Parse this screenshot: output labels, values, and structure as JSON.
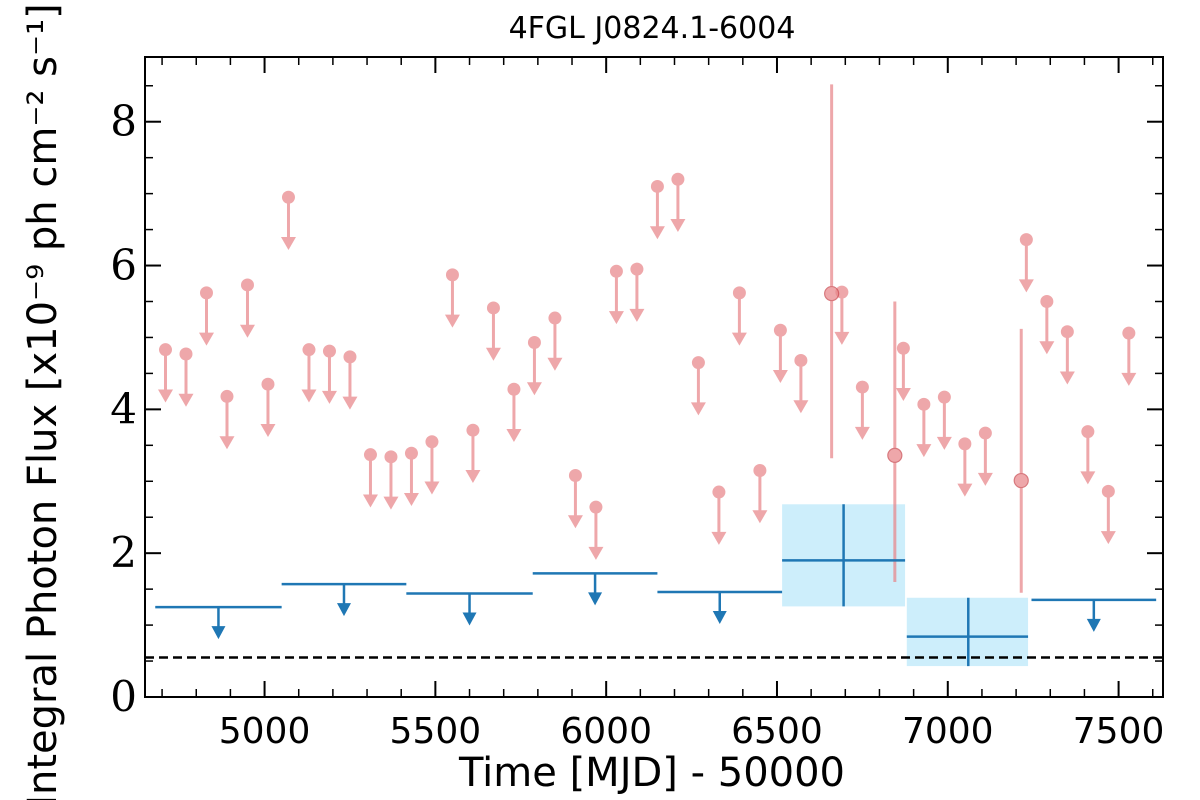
{
  "chart_data": {
    "type": "scatter",
    "title": "4FGL J0824.1-6004",
    "xlabel": "Time [MJD] - 50000",
    "ylabel": "Integral Photon Flux [x10⁻⁹ ph cm⁻² s⁻¹]",
    "xlim": [
      4650,
      7630
    ],
    "ylim": [
      0,
      8.9
    ],
    "xticks": [
      5000,
      5500,
      6000,
      6500,
      7000,
      7500
    ],
    "yticks": [
      0,
      2,
      4,
      6,
      8
    ],
    "xtick_labels": [
      "5000",
      "5500",
      "6000",
      "6500",
      "7000",
      "7500"
    ],
    "ytick_labels": [
      "0",
      "2",
      "4",
      "6",
      "8"
    ],
    "grid": false,
    "reference_line": {
      "y": 0.55,
      "style": "dashed",
      "color": "#000000"
    },
    "colors": {
      "short_bins": "#e8868a",
      "long_bins": "#1f77b4",
      "long_band": "#cdeefb"
    },
    "series": [
      {
        "kind": "short-bin upper limits",
        "x": [
          4710,
          4770,
          4830,
          4890,
          4950,
          5010,
          5070,
          5130,
          5190,
          5250,
          5310,
          5370,
          5430,
          5490,
          5550,
          5610,
          5670,
          5730,
          5790,
          5850,
          5910,
          5970,
          6030,
          6090,
          6150,
          6210,
          6270,
          6330,
          6390,
          6450,
          6510,
          6570,
          6630,
          6690,
          6750,
          6810,
          6870,
          6930,
          6990,
          7050,
          7110,
          7170,
          7230,
          7290,
          7350,
          7410,
          7470,
          7530,
          7590
        ],
        "y": [
          4.83,
          4.77,
          5.62,
          4.18,
          5.73,
          4.35,
          6.95,
          4.83,
          4.81,
          4.73,
          3.37,
          3.34,
          3.39,
          3.55,
          5.87,
          3.71,
          5.41,
          4.28,
          4.93,
          5.27,
          3.08,
          2.64,
          5.92,
          5.95,
          7.1,
          7.2,
          4.65,
          2.85,
          5.62,
          3.15,
          5.1,
          4.68,
          null,
          5.63,
          4.31,
          null,
          4.85,
          4.07,
          4.17,
          3.52,
          3.67,
          null,
          6.36,
          5.5,
          5.08,
          3.69,
          2.86,
          5.06,
          null
        ]
      },
      {
        "kind": "short-bin detections",
        "x": [
          6660,
          6845,
          7215
        ],
        "y": [
          5.61,
          3.36,
          3.01
        ],
        "yerr_low": [
          3.32,
          1.6,
          1.45
        ],
        "yerr_high": [
          8.52,
          5.5,
          5.12
        ]
      },
      {
        "kind": "long-bin upper limits",
        "x_start": [
          4680,
          5050,
          5415,
          5785,
          6150,
          6880,
          7245
        ],
        "x_end": [
          5050,
          5415,
          5785,
          6150,
          6515,
          7245,
          7610
        ],
        "y": [
          1.25,
          1.57,
          1.44,
          1.72,
          1.46,
          null,
          1.35
        ]
      },
      {
        "kind": "long-bin detections",
        "x": [
          6695,
          7060
        ],
        "x_start": [
          6515,
          6880
        ],
        "x_end": [
          6875,
          7235
        ],
        "y": [
          1.9,
          0.84
        ],
        "yerr_low": [
          1.26,
          0.43
        ],
        "yerr_high": [
          2.68,
          1.38
        ]
      }
    ]
  }
}
